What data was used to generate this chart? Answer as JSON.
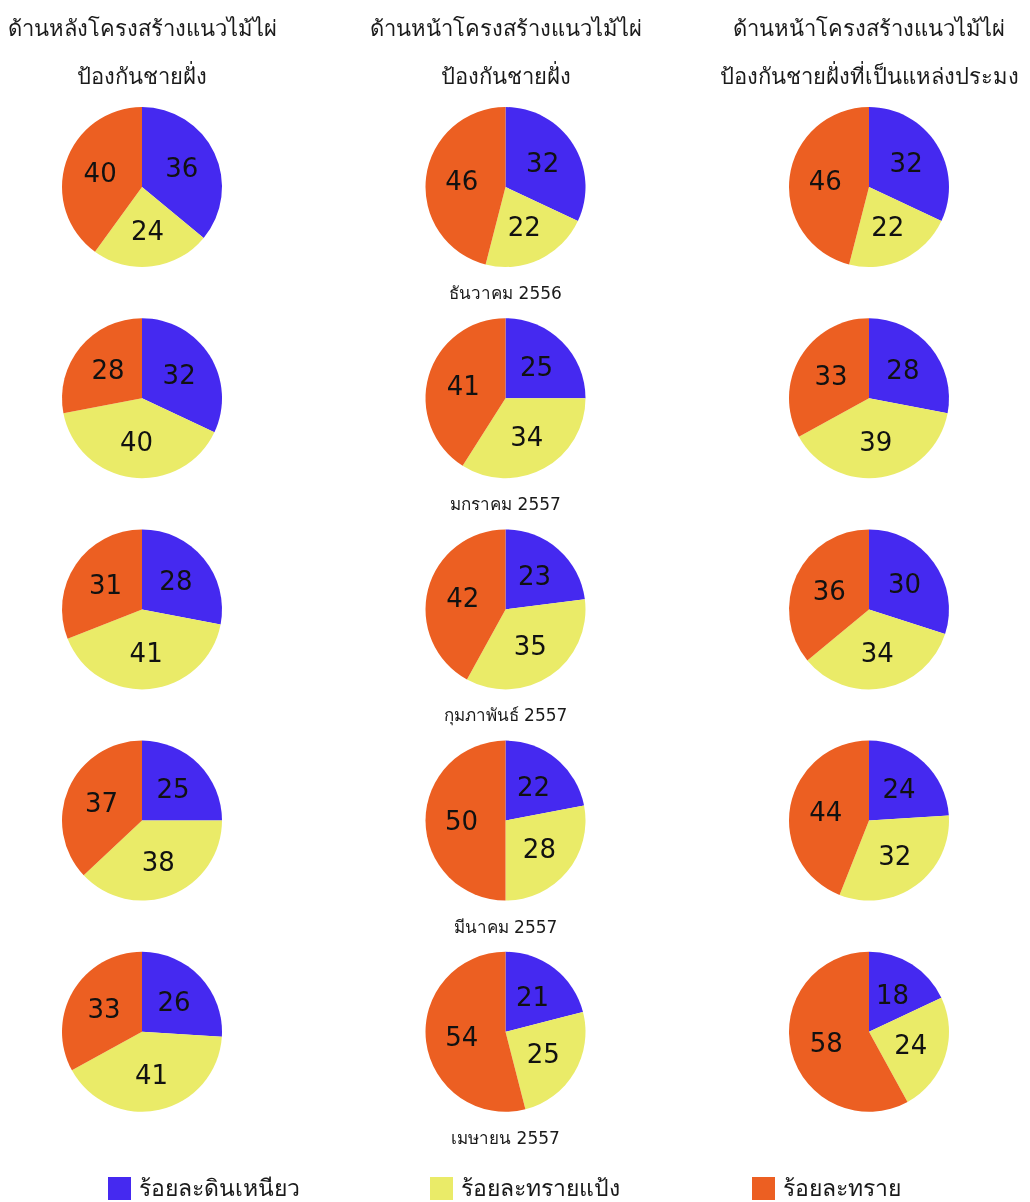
{
  "chart_data": [
    {
      "type": "pie",
      "title": "ด้านหลังโครงสร้างแนวไม้ไผ่ป้องกันชายฝั่ง",
      "categories": [
        null,
        null,
        null
      ],
      "values": [
        36,
        24,
        40
      ],
      "colors": [
        "#4529f0",
        "#eaeb68",
        "#ec5f22"
      ],
      "data_labels": true
    },
    {
      "type": "pie",
      "title": "ด้านหน้าโครงสร้างแนวไม้ไผ่ป้องกันชายฝั่ง",
      "categories": [
        null,
        null,
        null
      ],
      "values": [
        32,
        22,
        46
      ],
      "colors": [
        "#4529f0",
        "#eaeb68",
        "#ec5f22"
      ],
      "data_labels": true,
      "annotations": [
        "ธันวาคม 2556"
      ]
    },
    {
      "type": "pie",
      "title": "ด้านหน้าโครงสร้างแนวไม้ไผ่ป้องกันชายฝั่งที่เป็นแหล่งประมง",
      "categories": [
        null,
        null,
        null
      ],
      "values": [
        32,
        22,
        46
      ],
      "colors": [
        "#4529f0",
        "#eaeb68",
        "#ec5f22"
      ],
      "data_labels": true
    },
    {
      "type": "pie",
      "categories": [
        null,
        null,
        null
      ],
      "values": [
        32,
        40,
        28
      ],
      "colors": [
        "#4529f0",
        "#eaeb68",
        "#ec5f22"
      ],
      "data_labels": true
    },
    {
      "type": "pie",
      "categories": [
        null,
        null,
        null
      ],
      "values": [
        25,
        34,
        41
      ],
      "colors": [
        "#4529f0",
        "#eaeb68",
        "#ec5f22"
      ],
      "data_labels": true,
      "annotations": [
        "มกราคม 2557"
      ]
    },
    {
      "type": "pie",
      "categories": [
        null,
        null,
        null
      ],
      "values": [
        28,
        39,
        33
      ],
      "colors": [
        "#4529f0",
        "#eaeb68",
        "#ec5f22"
      ],
      "data_labels": true
    },
    {
      "type": "pie",
      "categories": [
        null,
        null,
        null
      ],
      "values": [
        28,
        41,
        31
      ],
      "colors": [
        "#4529f0",
        "#eaeb68",
        "#ec5f22"
      ],
      "data_labels": true
    },
    {
      "type": "pie",
      "categories": [
        null,
        null,
        null
      ],
      "values": [
        23,
        35,
        42
      ],
      "colors": [
        "#4529f0",
        "#eaeb68",
        "#ec5f22"
      ],
      "data_labels": true,
      "annotations": [
        "กุมภาพันธ์ 2557"
      ]
    },
    {
      "type": "pie",
      "categories": [
        null,
        null,
        null
      ],
      "values": [
        30,
        34,
        36
      ],
      "colors": [
        "#4529f0",
        "#eaeb68",
        "#ec5f22"
      ],
      "data_labels": true
    },
    {
      "type": "pie",
      "categories": [
        null,
        null,
        null
      ],
      "values": [
        25,
        38,
        37
      ],
      "colors": [
        "#4529f0",
        "#eaeb68",
        "#ec5f22"
      ],
      "data_labels": true
    },
    {
      "type": "pie",
      "categories": [
        null,
        null,
        null
      ],
      "values": [
        22,
        28,
        50
      ],
      "colors": [
        "#4529f0",
        "#eaeb68",
        "#ec5f22"
      ],
      "data_labels": true,
      "annotations": [
        "มีนาคม 2557"
      ]
    },
    {
      "type": "pie",
      "categories": [
        null,
        null,
        null
      ],
      "values": [
        24,
        32,
        44
      ],
      "colors": [
        "#4529f0",
        "#eaeb68",
        "#ec5f22"
      ],
      "data_labels": true
    },
    {
      "type": "pie",
      "categories": [
        null,
        null,
        null
      ],
      "values": [
        26,
        41,
        33
      ],
      "colors": [
        "#4529f0",
        "#eaeb68",
        "#ec5f22"
      ],
      "data_labels": true
    },
    {
      "type": "pie",
      "categories": [
        "ร้อยละดินเหนียว",
        "ร้อยละทรายแป้ง",
        "ร้อยละทราย"
      ],
      "values": [
        21,
        25,
        54
      ],
      "colors": [
        "#4529f0",
        "#eaeb68",
        "#ec5f22"
      ],
      "data_labels": true,
      "annotations": [
        "เมษายน 2557"
      ],
      "legend": "bottom"
    },
    {
      "type": "pie",
      "categories": [
        null,
        null,
        null
      ],
      "values": [
        18,
        24,
        58
      ],
      "colors": [
        "#4529f0",
        "#eaeb68",
        "#ec5f22"
      ],
      "data_labels": true
    }
  ]
}
